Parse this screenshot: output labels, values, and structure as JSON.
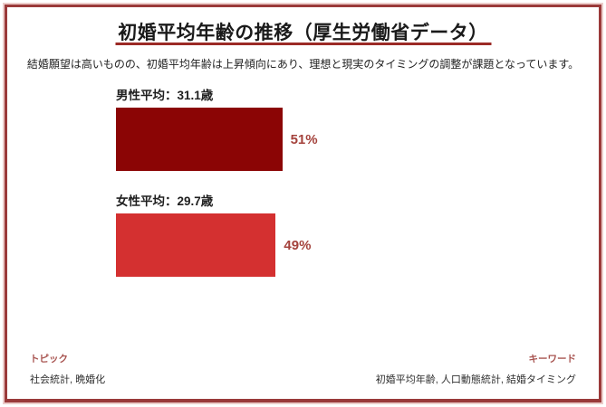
{
  "header": {
    "title": "初婚平均年齢の推移（厚生労働省データ）",
    "subtitle": "結婚願望は高いものの、初婚平均年齢は上昇傾向にあり、理想と現実のタイミングの調整が課題となっています。"
  },
  "chart_data": {
    "type": "bar",
    "orientation": "horizontal",
    "title": "初婚平均年齢の推移（厚生労働省データ）",
    "categories": [
      "男性平均",
      "女性平均"
    ],
    "values": [
      51,
      49
    ],
    "value_unit": "%",
    "xlim": [
      0,
      100
    ],
    "grid": false,
    "legend": false,
    "bars": [
      {
        "label": "男性平均：31.1歳",
        "category": "男性平均",
        "age_years": 31.1,
        "value": 51,
        "percent_label": "51%",
        "color": "#8b0505"
      },
      {
        "label": "女性平均：29.7歳",
        "category": "女性平均",
        "age_years": 29.7,
        "value": 49,
        "percent_label": "49%",
        "color": "#d43030"
      }
    ]
  },
  "footer": {
    "topic_label": "トピック",
    "topic_value": "社会統計, 晩婚化",
    "keyword_label": "キーワード",
    "keyword_value": "初婚平均年齢, 人口動態統計, 結婚タイミング"
  },
  "colors": {
    "male_bar": "#8b0505",
    "female_bar": "#d43030",
    "title_underline": "#9b2a26",
    "percent_text": "#a4423c",
    "footer_label_text": "#a85450",
    "frame_border": "#9a3a3a",
    "frame_halo": "#ecccca"
  }
}
